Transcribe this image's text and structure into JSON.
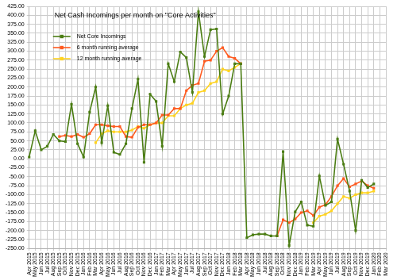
{
  "chart_data": {
    "type": "line",
    "title": "Net Cash Incomings per month on \"Core Activities\"",
    "categories": [
      "Apr 2015",
      "May 2015",
      "Jun 2015",
      "Jul 2015",
      "Aug 2015",
      "Sep 2015",
      "Oct 2015",
      "Nov 2015",
      "Dec 2015",
      "Jan 2016",
      "Feb 2016",
      "Mar 2016",
      "Apr 2016",
      "May 2016",
      "Jun 2016",
      "Jul 2016",
      "Aug 2016",
      "Sep 2016",
      "Oct 2016",
      "Nov 2016",
      "Dec 2016",
      "Jan 2017",
      "Feb 2017",
      "Mar 2017",
      "Apr 2017",
      "May 2017",
      "Jun 2017",
      "Jul 2017",
      "Aug 2017",
      "Sep 2017",
      "Oct 2017",
      "Nov 2017",
      "Dec 2017",
      "Jan 2018",
      "Feb 2018",
      "Mar 2018",
      "Apr 2018",
      "May 2018",
      "Jun 2018",
      "Jul 2018",
      "Aug 2018",
      "Sep 2018",
      "Oct 2018",
      "Nov 2018",
      "Dec 2018",
      "Jan 2019",
      "Feb 2019",
      "Mar 2019",
      "Apr 2019",
      "May 2019",
      "Jun 2019",
      "Jul 2019",
      "Aug 2019",
      "Sep 2019",
      "Oct 2019",
      "Nov 2019",
      "Dec 2019",
      "Jan 2020",
      "Feb 2020",
      "Mar 2020"
    ],
    "series": [
      {
        "name": "Net Core Incomings",
        "color": "#4b7d13",
        "marker": "square",
        "line_style": "solid",
        "values": [
          5,
          78,
          25,
          35,
          68,
          50,
          48,
          152,
          42,
          5,
          130,
          200,
          45,
          148,
          18,
          12,
          42,
          140,
          222,
          -10,
          180,
          160,
          35,
          265,
          215,
          298,
          282,
          185,
          410,
          285,
          360,
          362,
          125,
          175,
          265,
          265,
          -220,
          -212,
          -210,
          -210,
          -215,
          -215,
          20,
          -242,
          -148,
          -120,
          -185,
          -188,
          -48,
          -130,
          -120,
          55,
          -15,
          -90,
          -200,
          -60,
          -80,
          -70,
          null,
          null
        ]
      },
      {
        "name": "6 month running average",
        "color": "#ff5a1f",
        "marker": "square",
        "line_style": "solid",
        "values": [
          null,
          null,
          null,
          null,
          null,
          62,
          65,
          62,
          68,
          60,
          70,
          95,
          95,
          92,
          90,
          90,
          62,
          60,
          88,
          95,
          95,
          100,
          122,
          122,
          140,
          140,
          190,
          205,
          210,
          272,
          275,
          300,
          310,
          285,
          280,
          265,
          null,
          null,
          null,
          null,
          null,
          -215,
          -170,
          -178,
          -168,
          -150,
          -145,
          -158,
          -135,
          -128,
          -105,
          -75,
          -55,
          -78,
          -70,
          -62,
          -75,
          -82,
          null,
          null
        ]
      },
      {
        "name": "12 month running average",
        "color": "#ffd320",
        "marker": "square",
        "line_style": "solid",
        "values": [
          null,
          null,
          null,
          null,
          null,
          null,
          null,
          null,
          null,
          null,
          null,
          45,
          70,
          78,
          75,
          75,
          75,
          80,
          90,
          85,
          95,
          100,
          100,
          120,
          120,
          140,
          150,
          155,
          185,
          190,
          210,
          215,
          250,
          245,
          255,
          265,
          null,
          null,
          null,
          null,
          null,
          null,
          null,
          null,
          null,
          null,
          null,
          -178,
          -160,
          -155,
          -145,
          -125,
          -105,
          -110,
          -100,
          -95,
          -95,
          -90,
          null,
          null
        ]
      }
    ],
    "ylim": [
      -250,
      425
    ],
    "yticks": [
      {
        "value": -250,
        "label": "-250.00"
      },
      {
        "value": -225,
        "label": "-225.00"
      },
      {
        "value": -200,
        "label": "-200.00"
      },
      {
        "value": -175,
        "label": "-175.00"
      },
      {
        "value": -150,
        "label": "-150.00"
      },
      {
        "value": -125,
        "label": "-125.00"
      },
      {
        "value": -100,
        "label": "-100.00"
      },
      {
        "value": -75,
        "label": "-75.00"
      },
      {
        "value": -50,
        "label": "-50.00"
      },
      {
        "value": -25,
        "label": "-25.00"
      },
      {
        "value": 0,
        "label": "0.00"
      },
      {
        "value": 25,
        "label": "25.00"
      },
      {
        "value": 50,
        "label": "50.00"
      },
      {
        "value": 75,
        "label": "75.00"
      },
      {
        "value": 100,
        "label": "100.00"
      },
      {
        "value": 125,
        "label": "125.00"
      },
      {
        "value": 150,
        "label": "150.00"
      },
      {
        "value": 175,
        "label": "175.00"
      },
      {
        "value": 200,
        "label": "200.00"
      },
      {
        "value": 225,
        "label": "225.00"
      },
      {
        "value": 250,
        "label": "250.00"
      },
      {
        "value": 275,
        "label": "275.00"
      },
      {
        "value": 300,
        "label": "300.00"
      },
      {
        "value": 325,
        "label": "325.00"
      },
      {
        "value": 350,
        "label": "350.00"
      },
      {
        "value": 375,
        "label": "375.00"
      },
      {
        "value": 400,
        "label": "400.00"
      },
      {
        "value": 425,
        "label": "425.00"
      }
    ],
    "grid": true,
    "legend": "upper left"
  }
}
